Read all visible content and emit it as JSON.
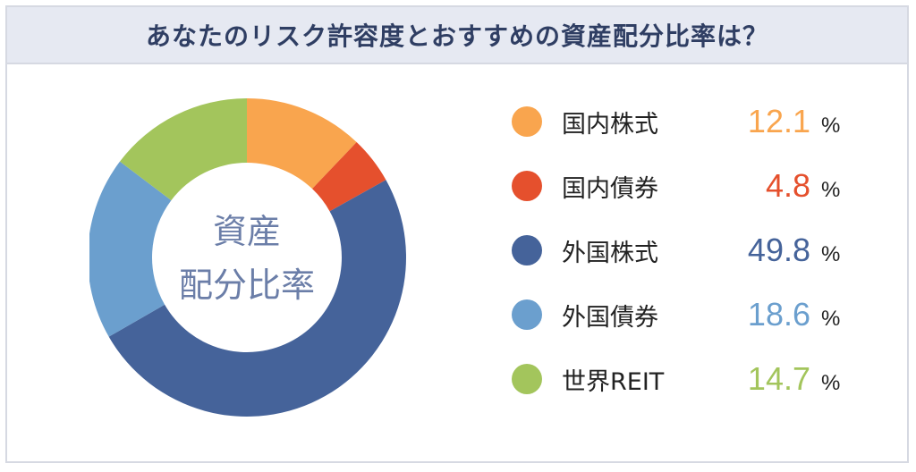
{
  "header": {
    "title": "あなたのリスク許容度とおすすめの資産配分比率は？"
  },
  "center_label": {
    "line1": "資産",
    "line2": "配分比率"
  },
  "unit": "%",
  "colors": {
    "header_bg": "#e6e9f2",
    "title_text": "#2f3e63",
    "center_text": "#6b7ea8"
  },
  "chart_data": {
    "type": "pie",
    "style": "donut",
    "categories": [
      "国内株式",
      "国内債券",
      "外国株式",
      "外国債券",
      "世界REIT"
    ],
    "values": [
      12.1,
      4.8,
      49.8,
      18.6,
      14.7
    ],
    "display_values": [
      "12.1",
      "4.8",
      "49.8",
      "18.6",
      "14.7"
    ],
    "colors": [
      "#f9a54e",
      "#e5502d",
      "#45639a",
      "#6b9fce",
      "#a3c55c"
    ],
    "start_angle_deg": 0,
    "direction": "clockwise",
    "legend": "right"
  }
}
